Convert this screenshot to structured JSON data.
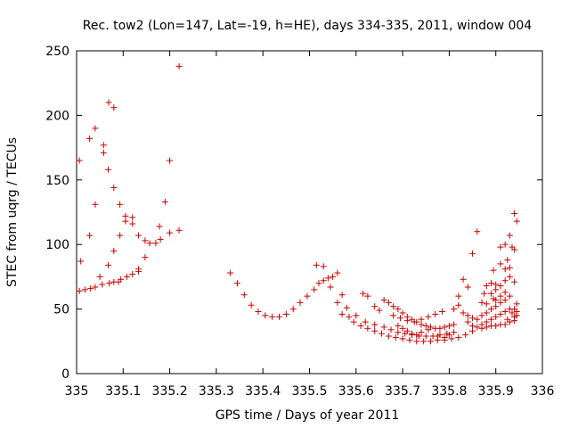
{
  "chart_data": {
    "type": "scatter",
    "title": "Rec. tow2 (Lon=147, Lat=-19, h=HE), days 334-335, 2011, window 004",
    "xlabel": "GPS time / Days of year 2011",
    "ylabel": "STEC from uqrg / TECUs",
    "xlim": [
      335,
      336
    ],
    "ylim": [
      0,
      250
    ],
    "x_ticks": [
      335,
      335.1,
      335.2,
      335.3,
      335.4,
      335.5,
      335.6,
      335.7,
      335.8,
      335.9,
      336
    ],
    "x_tick_labels": [
      "335",
      "335.1",
      "335.2",
      "335.3",
      "335.4",
      "335.5",
      "335.6",
      "335.7",
      "335.8",
      "335.9",
      "336"
    ],
    "y_ticks": [
      0,
      50,
      100,
      150,
      200,
      250
    ],
    "y_tick_labels": [
      "0",
      "50",
      "100",
      "150",
      "200",
      "250"
    ],
    "grid": false,
    "marker": "+",
    "color": "#cc0000",
    "series": [
      {
        "points": [
          [
            335.006,
            165
          ],
          [
            335.009,
            87
          ],
          [
            335.028,
            107
          ],
          [
            335.028,
            182
          ],
          [
            335.04,
            131
          ],
          [
            335.04,
            190
          ],
          [
            335.058,
            177
          ],
          [
            335.058,
            171
          ],
          [
            335.068,
            84
          ],
          [
            335.068,
            158
          ],
          [
            335.069,
            210
          ],
          [
            335.08,
            206
          ],
          [
            335.08,
            144
          ],
          [
            335.08,
            95
          ],
          [
            335.093,
            131
          ],
          [
            335.093,
            107
          ],
          [
            335.105,
            122
          ],
          [
            335.105,
            118
          ],
          [
            335.12,
            121
          ],
          [
            335.12,
            116
          ],
          [
            335.133,
            107
          ],
          [
            335.133,
            81
          ],
          [
            335.147,
            103
          ],
          [
            335.147,
            90
          ],
          [
            335.157,
            101
          ],
          [
            335.17,
            101
          ],
          [
            335.178,
            114
          ],
          [
            335.19,
            133
          ],
          [
            335.2,
            165
          ],
          [
            335.2,
            109
          ],
          [
            335.22,
            238
          ],
          [
            335.22,
            111
          ],
          [
            335.18,
            104
          ],
          [
            335.006,
            64
          ],
          [
            335.018,
            65
          ],
          [
            335.03,
            66
          ],
          [
            335.04,
            67
          ],
          [
            335.055,
            69
          ],
          [
            335.07,
            70
          ],
          [
            335.08,
            71
          ],
          [
            335.095,
            73
          ],
          [
            335.108,
            75
          ],
          [
            335.12,
            77
          ],
          [
            335.133,
            79
          ],
          [
            335.05,
            75
          ],
          [
            335.09,
            71
          ],
          [
            335.33,
            78
          ],
          [
            335.345,
            70
          ],
          [
            335.36,
            61
          ],
          [
            335.375,
            53
          ],
          [
            335.39,
            48
          ],
          [
            335.405,
            45
          ],
          [
            335.42,
            44
          ],
          [
            335.435,
            44
          ],
          [
            335.45,
            46
          ],
          [
            335.465,
            50
          ],
          [
            335.48,
            55
          ],
          [
            335.495,
            60
          ],
          [
            335.51,
            65
          ],
          [
            335.52,
            70
          ],
          [
            335.53,
            72
          ],
          [
            335.54,
            74
          ],
          [
            335.55,
            75
          ],
          [
            335.56,
            78
          ],
          [
            335.515,
            84
          ],
          [
            335.53,
            83
          ],
          [
            335.545,
            67
          ],
          [
            335.56,
            55
          ],
          [
            335.57,
            61
          ],
          [
            335.58,
            51
          ],
          [
            335.57,
            46
          ],
          [
            335.585,
            44
          ],
          [
            335.595,
            40
          ],
          [
            335.61,
            37
          ],
          [
            335.625,
            35
          ],
          [
            335.64,
            33
          ],
          [
            335.655,
            31
          ],
          [
            335.67,
            29
          ],
          [
            335.685,
            28
          ],
          [
            335.7,
            27
          ],
          [
            335.715,
            26
          ],
          [
            335.73,
            25
          ],
          [
            335.745,
            25
          ],
          [
            335.76,
            25
          ],
          [
            335.775,
            26
          ],
          [
            335.79,
            26
          ],
          [
            335.805,
            27
          ],
          [
            335.82,
            28
          ],
          [
            335.835,
            30
          ],
          [
            335.85,
            33
          ],
          [
            335.87,
            35
          ],
          [
            335.89,
            37
          ],
          [
            335.91,
            38
          ],
          [
            335.93,
            40
          ],
          [
            335.94,
            44
          ],
          [
            335.6,
            45
          ],
          [
            335.615,
            62
          ],
          [
            335.625,
            60
          ],
          [
            335.64,
            52
          ],
          [
            335.65,
            49
          ],
          [
            335.66,
            57
          ],
          [
            335.67,
            55
          ],
          [
            335.68,
            52
          ],
          [
            335.69,
            50
          ],
          [
            335.7,
            47
          ],
          [
            335.71,
            44
          ],
          [
            335.72,
            42
          ],
          [
            335.73,
            40
          ],
          [
            335.74,
            38
          ],
          [
            335.75,
            37
          ],
          [
            335.76,
            36
          ],
          [
            335.77,
            35
          ],
          [
            335.78,
            35
          ],
          [
            335.79,
            36
          ],
          [
            335.8,
            37
          ],
          [
            335.81,
            38
          ],
          [
            335.62,
            40
          ],
          [
            335.64,
            38
          ],
          [
            335.66,
            36
          ],
          [
            335.675,
            34
          ],
          [
            335.69,
            32
          ],
          [
            335.705,
            31
          ],
          [
            335.72,
            30
          ],
          [
            335.735,
            29
          ],
          [
            335.75,
            29
          ],
          [
            335.765,
            29
          ],
          [
            335.78,
            30
          ],
          [
            335.795,
            31
          ],
          [
            335.81,
            32
          ],
          [
            335.68,
            45
          ],
          [
            335.695,
            43
          ],
          [
            335.71,
            41
          ],
          [
            335.725,
            40
          ],
          [
            335.74,
            42
          ],
          [
            335.755,
            44
          ],
          [
            335.77,
            46
          ],
          [
            335.785,
            48
          ],
          [
            335.69,
            37
          ],
          [
            335.7,
            35
          ],
          [
            335.71,
            33
          ],
          [
            335.72,
            31
          ],
          [
            335.73,
            30
          ],
          [
            335.74,
            32
          ],
          [
            335.755,
            34
          ],
          [
            335.775,
            29
          ],
          [
            335.79,
            28
          ],
          [
            335.8,
            30
          ],
          [
            335.81,
            50
          ],
          [
            335.82,
            53
          ],
          [
            335.83,
            47
          ],
          [
            335.84,
            45
          ],
          [
            335.85,
            43
          ],
          [
            335.86,
            42
          ],
          [
            335.82,
            60
          ],
          [
            335.83,
            73
          ],
          [
            335.84,
            67
          ],
          [
            335.85,
            93
          ],
          [
            335.86,
            110
          ],
          [
            335.87,
            55
          ],
          [
            335.875,
            62
          ],
          [
            335.88,
            68
          ],
          [
            335.89,
            70
          ],
          [
            335.9,
            69
          ],
          [
            335.91,
            85
          ],
          [
            335.92,
            81
          ],
          [
            335.93,
            107
          ],
          [
            335.935,
            98
          ],
          [
            335.94,
            124
          ],
          [
            335.945,
            118
          ],
          [
            335.94,
            96
          ],
          [
            335.94,
            71
          ],
          [
            335.945,
            54
          ],
          [
            335.87,
            45
          ],
          [
            335.88,
            47
          ],
          [
            335.89,
            50
          ],
          [
            335.9,
            52
          ],
          [
            335.91,
            55
          ],
          [
            335.92,
            57
          ],
          [
            335.93,
            60
          ],
          [
            335.87,
            38
          ],
          [
            335.88,
            40
          ],
          [
            335.89,
            42
          ],
          [
            335.9,
            44
          ],
          [
            335.91,
            46
          ],
          [
            335.92,
            48
          ],
          [
            335.93,
            50
          ],
          [
            335.89,
            62
          ],
          [
            335.9,
            65
          ],
          [
            335.91,
            68
          ],
          [
            335.92,
            72
          ],
          [
            335.93,
            75
          ],
          [
            335.895,
            80
          ],
          [
            335.91,
            98
          ],
          [
            335.92,
            100
          ],
          [
            335.925,
            88
          ],
          [
            335.93,
            82
          ],
          [
            335.94,
            50
          ],
          [
            335.945,
            48
          ],
          [
            335.9,
            57
          ],
          [
            335.92,
            63
          ],
          [
            335.88,
            36
          ],
          [
            335.9,
            37
          ],
          [
            335.92,
            38
          ],
          [
            335.94,
            41
          ],
          [
            335.86,
            36
          ],
          [
            335.85,
            37
          ],
          [
            335.84,
            40
          ],
          [
            335.88,
            54
          ],
          [
            335.895,
            58
          ],
          [
            335.91,
            60
          ],
          [
            335.925,
            42
          ],
          [
            335.935,
            47
          ],
          [
            335.945,
            45
          ]
        ]
      }
    ]
  }
}
